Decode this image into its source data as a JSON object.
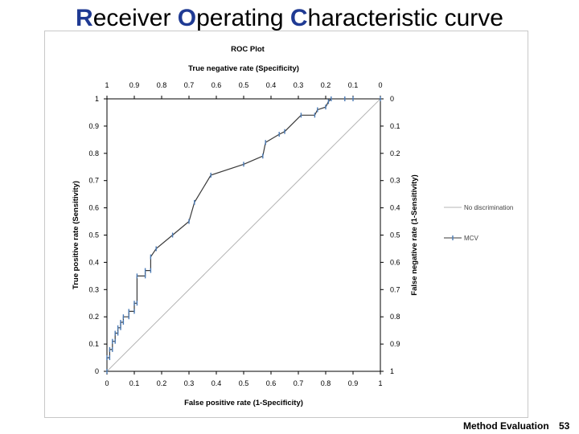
{
  "slide": {
    "title_parts": [
      {
        "cap": "R",
        "rest": "eceiver "
      },
      {
        "cap": "O",
        "rest": "perating "
      },
      {
        "cap": "C",
        "rest": "haracteristic curve"
      }
    ],
    "footer_label": "Method Evaluation",
    "page_number": "53"
  },
  "chart_data": {
    "type": "line",
    "title": "ROC Plot",
    "xlabel": "False positive rate (1-Specificity)",
    "ylabel": "True positive rate (Sensitivity)",
    "top_xlabel": "True negative rate (Specificity)",
    "right_ylabel": "False negative rate (1-Sensitivity)",
    "xlim": [
      0,
      1
    ],
    "ylim": [
      0,
      1
    ],
    "x_ticks": [
      "0",
      "0.1",
      "0.2",
      "0.3",
      "0.4",
      "0.5",
      "0.6",
      "0.7",
      "0.8",
      "0.9",
      "1"
    ],
    "y_ticks": [
      "0",
      "0.1",
      "0.2",
      "0.3",
      "0.4",
      "0.5",
      "0.6",
      "0.7",
      "0.8",
      "0.9",
      "1"
    ],
    "top_ticks": [
      "1",
      "0.9",
      "0.8",
      "0.7",
      "0.6",
      "0.5",
      "0.4",
      "0.3",
      "0.2",
      "0.1",
      "0"
    ],
    "right_ticks": [
      "1",
      "0.9",
      "0.8",
      "0.7",
      "0.6",
      "0.5",
      "0.4",
      "0.3",
      "0.2",
      "0.1",
      "0"
    ],
    "legend": [
      {
        "name": "No discrimination",
        "color": "#b4b4b4"
      },
      {
        "name": "MCV",
        "color": "#4a7ab5"
      }
    ],
    "series": [
      {
        "name": "No discrimination",
        "color": "#b4b4b4",
        "x": [
          0,
          1
        ],
        "y": [
          0,
          1
        ]
      },
      {
        "name": "MCV",
        "color": "#3a3a3a",
        "marker_color": "#4a7ab5",
        "x": [
          0,
          0,
          0.01,
          0.01,
          0.02,
          0.02,
          0.03,
          0.03,
          0.04,
          0.04,
          0.05,
          0.05,
          0.06,
          0.06,
          0.08,
          0.08,
          0.1,
          0.1,
          0.11,
          0.11,
          0.14,
          0.14,
          0.16,
          0.16,
          0.18,
          0.24,
          0.3,
          0.32,
          0.38,
          0.5,
          0.57,
          0.58,
          0.63,
          0.65,
          0.71,
          0.76,
          0.77,
          0.8,
          0.81,
          0.82,
          0.87,
          0.9,
          1.0
        ],
        "y": [
          0,
          0.05,
          0.05,
          0.08,
          0.08,
          0.11,
          0.11,
          0.14,
          0.14,
          0.16,
          0.16,
          0.18,
          0.18,
          0.2,
          0.2,
          0.22,
          0.22,
          0.25,
          0.25,
          0.35,
          0.35,
          0.37,
          0.37,
          0.42,
          0.45,
          0.5,
          0.55,
          0.62,
          0.72,
          0.76,
          0.79,
          0.84,
          0.87,
          0.88,
          0.94,
          0.94,
          0.96,
          0.97,
          0.99,
          1.0,
          1.0,
          1.0,
          1.0
        ]
      }
    ]
  }
}
